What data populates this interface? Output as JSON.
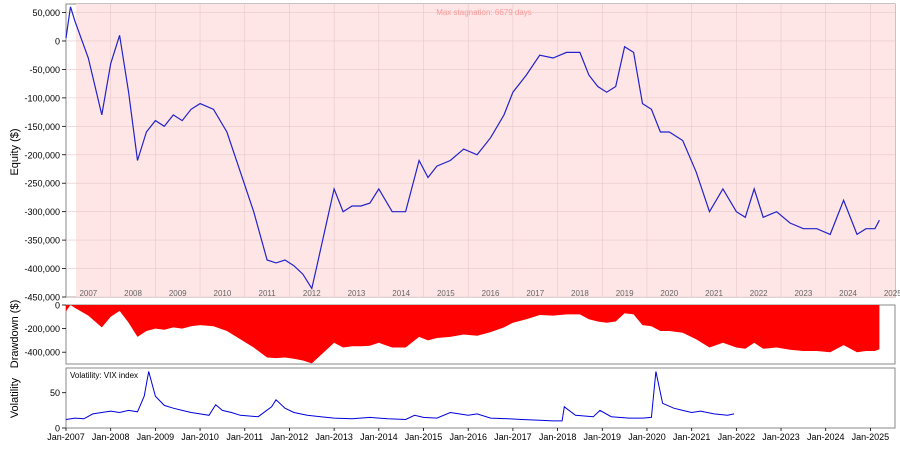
{
  "chart_data": [
    {
      "type": "line",
      "ylabel": "Equity ($)",
      "annotation": "Max stagnation: 6679 days",
      "ylim": [
        -450000,
        65000
      ],
      "yticks": [
        50000,
        0,
        -50000,
        -100000,
        -150000,
        -200000,
        -250000,
        -300000,
        -350000,
        -400000,
        -450000
      ],
      "ytick_labels": [
        "50,000",
        "0",
        "-50,000",
        "-100,000",
        "-150,000",
        "-200,000",
        "-250,000",
        "-300,000",
        "-350,000",
        "-400,000",
        "-450,000"
      ],
      "year_labels": [
        "2007",
        "2008",
        "2009",
        "2010",
        "2011",
        "2012",
        "2013",
        "2014",
        "2015",
        "2016",
        "2017",
        "2018",
        "2019",
        "2020",
        "2021",
        "2022",
        "2023",
        "2024",
        "2025"
      ],
      "stagnation_shading": true,
      "grid": true,
      "line_color": "#2222cc",
      "shade_color": "#ffe6e6",
      "x": [
        2007.0,
        2007.1,
        2007.2,
        2007.5,
        2007.8,
        2008.0,
        2008.2,
        2008.4,
        2008.6,
        2008.8,
        2009.0,
        2009.2,
        2009.4,
        2009.6,
        2009.8,
        2010.0,
        2010.3,
        2010.6,
        2010.9,
        2011.2,
        2011.5,
        2011.7,
        2011.9,
        2012.1,
        2012.3,
        2012.5,
        2012.6,
        2012.8,
        2013.0,
        2013.2,
        2013.4,
        2013.6,
        2013.8,
        2014.0,
        2014.3,
        2014.6,
        2014.9,
        2015.1,
        2015.3,
        2015.6,
        2015.9,
        2016.2,
        2016.5,
        2016.8,
        2017.0,
        2017.3,
        2017.6,
        2017.9,
        2018.2,
        2018.5,
        2018.7,
        2018.9,
        2019.1,
        2019.3,
        2019.5,
        2019.7,
        2019.9,
        2020.1,
        2020.3,
        2020.5,
        2020.8,
        2021.1,
        2021.4,
        2021.7,
        2022.0,
        2022.2,
        2022.4,
        2022.6,
        2022.9,
        2023.2,
        2023.5,
        2023.8,
        2024.1,
        2024.4,
        2024.7,
        2024.9,
        2025.1,
        2025.2
      ],
      "y": [
        5000,
        60000,
        35000,
        -30000,
        -130000,
        -40000,
        10000,
        -90000,
        -210000,
        -160000,
        -140000,
        -150000,
        -130000,
        -140000,
        -120000,
        -110000,
        -120000,
        -160000,
        -230000,
        -300000,
        -385000,
        -390000,
        -385000,
        -395000,
        -410000,
        -435000,
        -400000,
        -330000,
        -260000,
        -300000,
        -290000,
        -290000,
        -285000,
        -260000,
        -300000,
        -300000,
        -210000,
        -240000,
        -220000,
        -210000,
        -190000,
        -200000,
        -170000,
        -130000,
        -90000,
        -60000,
        -25000,
        -30000,
        -20000,
        -20000,
        -60000,
        -80000,
        -90000,
        -80000,
        -10000,
        -20000,
        -110000,
        -120000,
        -160000,
        -160000,
        -175000,
        -230000,
        -300000,
        -260000,
        -300000,
        -310000,
        -260000,
        -310000,
        -300000,
        -320000,
        -330000,
        -330000,
        -340000,
        -280000,
        -340000,
        -330000,
        -330000,
        -315000
      ]
    },
    {
      "type": "area",
      "ylabel": "Drawdown ($)",
      "ylim": [
        -450000,
        0
      ],
      "yticks": [
        0,
        -200000,
        -400000
      ],
      "ytick_labels": [
        "0",
        "-200,000",
        "-400,000"
      ],
      "fill_color": "#ff0000",
      "x": [
        2007.0,
        2007.1,
        2007.2,
        2007.5,
        2007.8,
        2008.0,
        2008.2,
        2008.4,
        2008.6,
        2008.8,
        2009.0,
        2009.2,
        2009.4,
        2009.6,
        2009.8,
        2010.0,
        2010.3,
        2010.6,
        2010.9,
        2011.2,
        2011.5,
        2011.7,
        2011.9,
        2012.1,
        2012.3,
        2012.5,
        2012.6,
        2012.8,
        2013.0,
        2013.2,
        2013.4,
        2013.6,
        2013.8,
        2014.0,
        2014.3,
        2014.6,
        2014.9,
        2015.1,
        2015.3,
        2015.6,
        2015.9,
        2016.2,
        2016.5,
        2016.8,
        2017.0,
        2017.3,
        2017.6,
        2017.9,
        2018.2,
        2018.5,
        2018.7,
        2018.9,
        2019.1,
        2019.3,
        2019.5,
        2019.7,
        2019.9,
        2020.1,
        2020.3,
        2020.5,
        2020.8,
        2021.1,
        2021.4,
        2021.7,
        2022.0,
        2022.2,
        2022.4,
        2022.6,
        2022.9,
        2023.2,
        2023.5,
        2023.8,
        2024.1,
        2024.4,
        2024.7,
        2024.9,
        2025.1,
        2025.2
      ],
      "y": [
        -55000,
        0,
        -25000,
        -90000,
        -190000,
        -100000,
        -50000,
        -150000,
        -270000,
        -220000,
        -200000,
        -210000,
        -190000,
        -200000,
        -180000,
        -170000,
        -180000,
        -220000,
        -290000,
        -360000,
        -445000,
        -450000,
        -445000,
        -455000,
        -470000,
        -495000,
        -460000,
        -390000,
        -320000,
        -360000,
        -350000,
        -350000,
        -345000,
        -320000,
        -360000,
        -360000,
        -270000,
        -300000,
        -280000,
        -270000,
        -250000,
        -260000,
        -230000,
        -190000,
        -150000,
        -120000,
        -85000,
        -90000,
        -80000,
        -80000,
        -120000,
        -140000,
        -150000,
        -140000,
        -70000,
        -80000,
        -170000,
        -180000,
        -220000,
        -220000,
        -235000,
        -290000,
        -360000,
        -320000,
        -360000,
        -370000,
        -320000,
        -370000,
        -360000,
        -380000,
        -390000,
        -390000,
        -400000,
        -340000,
        -400000,
        -390000,
        -390000,
        -375000
      ]
    },
    {
      "type": "line",
      "ylabel": "Volatility",
      "legend": "Volatility: VIX index",
      "ylim": [
        0,
        85
      ],
      "yticks": [
        0,
        50
      ],
      "ytick_labels": [
        "0",
        "50"
      ],
      "line_color": "#0000dd",
      "x_tick_labels": [
        "Jan-2007",
        "Jan-2008",
        "Jan-2009",
        "Jan-2010",
        "Jan-2011",
        "Jan-2012",
        "Jan-2013",
        "Jan-2014",
        "Jan-2015",
        "Jan-2016",
        "Jan-2017",
        "Jan-2018",
        "Jan-2019",
        "Jan-2020",
        "Jan-2021",
        "Jan-2022",
        "Jan-2023",
        "Jan-2024",
        "Jan-2025"
      ],
      "x": [
        2007.0,
        2007.2,
        2007.4,
        2007.6,
        2007.8,
        2008.0,
        2008.2,
        2008.4,
        2008.6,
        2008.75,
        2008.85,
        2009.0,
        2009.2,
        2009.4,
        2009.6,
        2009.8,
        2010.0,
        2010.2,
        2010.35,
        2010.5,
        2010.7,
        2010.9,
        2011.1,
        2011.3,
        2011.6,
        2011.7,
        2011.9,
        2012.1,
        2012.4,
        2012.7,
        2013.0,
        2013.4,
        2013.8,
        2014.2,
        2014.6,
        2014.8,
        2015.0,
        2015.3,
        2015.6,
        2015.8,
        2016.0,
        2016.2,
        2016.5,
        2016.9,
        2017.2,
        2017.6,
        2017.9,
        2018.1,
        2018.15,
        2018.4,
        2018.8,
        2018.95,
        2019.2,
        2019.6,
        2019.9,
        2020.1,
        2020.2,
        2020.35,
        2020.6,
        2020.8,
        2021.0,
        2021.2,
        2021.5,
        2021.8,
        2021.95
      ],
      "y": [
        12,
        14,
        13,
        20,
        22,
        24,
        22,
        25,
        23,
        45,
        80,
        45,
        32,
        28,
        25,
        22,
        20,
        18,
        33,
        25,
        22,
        18,
        17,
        16,
        30,
        40,
        28,
        22,
        18,
        16,
        14,
        13,
        15,
        13,
        12,
        18,
        15,
        14,
        22,
        20,
        18,
        20,
        14,
        13,
        12,
        11,
        10,
        10,
        30,
        18,
        16,
        25,
        16,
        14,
        14,
        15,
        80,
        35,
        28,
        25,
        22,
        24,
        20,
        18,
        20
      ]
    }
  ]
}
